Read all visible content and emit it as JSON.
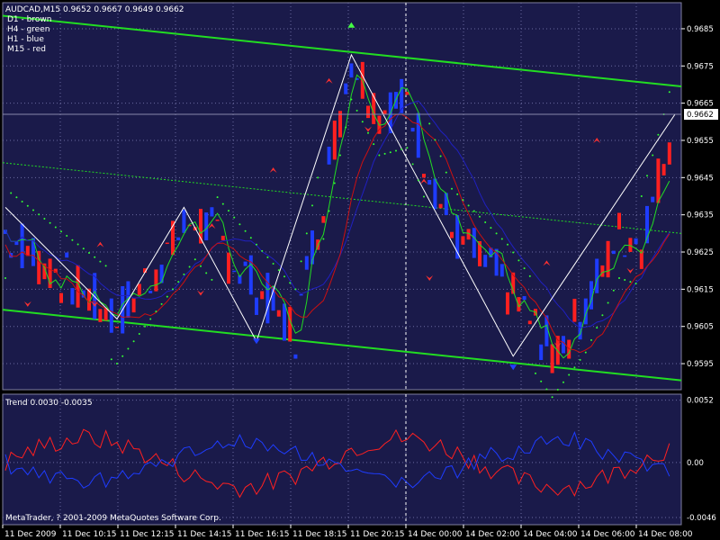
{
  "header": {
    "symbol_line": "AUDCAD,M15  0.9652 0.9667 0.9649 0.9662",
    "legend": [
      "D1 - brown",
      "H4 - green",
      "H1 - blue",
      "M15 - red"
    ]
  },
  "indicator": {
    "label": "Trend 0.0030 -0.0035",
    "copyright": "MetaTrader, ? 2001-2009 MetaQuotes Software Corp."
  },
  "colors": {
    "background": "#000000",
    "plot_background": "#1a1a4a",
    "grid": "#6a6aa0",
    "bull": "#1e3cff",
    "bear": "#ff2020",
    "channel": "#22dd22",
    "zigzag": "#ffffff",
    "fast_ma": "#22dd22",
    "slow_blue": "#2020c0",
    "slow_red": "#cc1010",
    "sar": "#33ff33",
    "arrow_up": "#ff3030",
    "arrow_down": "#ff3030",
    "arrow_blue": "#2040ff",
    "arrow_green": "#44ff44"
  },
  "chart_data": {
    "type": "candlestick",
    "price_axis": {
      "ylim": [
        0.9588,
        0.9692
      ],
      "ticks": [
        "0.9685",
        "0.9675",
        "0.9665",
        "0.9655",
        "0.9645",
        "0.9635",
        "0.9625",
        "0.9615",
        "0.9605",
        "0.9595"
      ],
      "current": "0.9662"
    },
    "indicator_axis": {
      "ylim": [
        -0.0052,
        0.0057
      ],
      "ticks": [
        "0.0052",
        "0.00",
        "-0.0046"
      ]
    },
    "time_axis": [
      "11 Dec 2009",
      "11 Dec 10:15",
      "11 Dec 12:15",
      "11 Dec 14:15",
      "11 Dec 16:15",
      "11 Dec 18:15",
      "11 Dec 20:15",
      "14 Dec 00:00",
      "14 Dec 02:00",
      "14 Dec 04:00",
      "14 Dec 06:00",
      "14 Dec 08:00"
    ],
    "grid": true
  }
}
